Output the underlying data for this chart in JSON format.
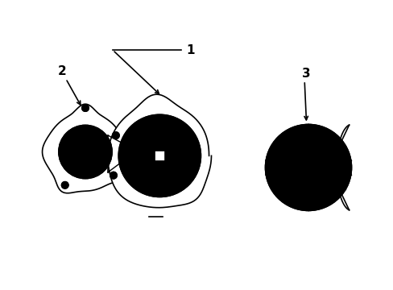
{
  "bg_color": "#ffffff",
  "line_color": "#000000",
  "line_width": 1.2,
  "label1": "1",
  "label2": "2",
  "label3": "3",
  "fig_width": 4.89,
  "fig_height": 3.6,
  "dpi": 100
}
